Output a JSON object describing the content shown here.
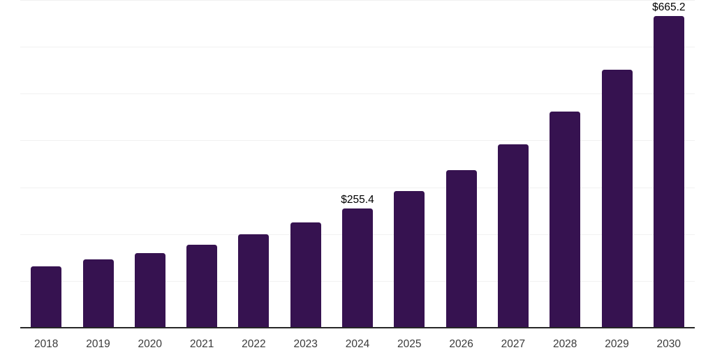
{
  "chart_data": {
    "type": "bar",
    "title": "",
    "xlabel": "",
    "ylabel": "",
    "categories": [
      "2018",
      "2019",
      "2020",
      "2021",
      "2022",
      "2023",
      "2024",
      "2025",
      "2026",
      "2027",
      "2028",
      "2029",
      "2030"
    ],
    "values": [
      131,
      146,
      160,
      177,
      200,
      225,
      255.4,
      292,
      337,
      392,
      462,
      551,
      665.2
    ],
    "data_labels": [
      {
        "category": "2024",
        "text": "$255.4"
      },
      {
        "category": "2030",
        "text": "$665.2"
      }
    ],
    "ylim": [
      0,
      700
    ],
    "grid_step": 100,
    "grid": "horizontal",
    "y_axis_labels_visible": false,
    "legend": false
  },
  "colors": {
    "bar": "#361250",
    "grid": "#f1f1f1",
    "axis": "#262626",
    "tick_label": "#3a3a3a",
    "data_label": "#000000",
    "background": "#ffffff"
  }
}
